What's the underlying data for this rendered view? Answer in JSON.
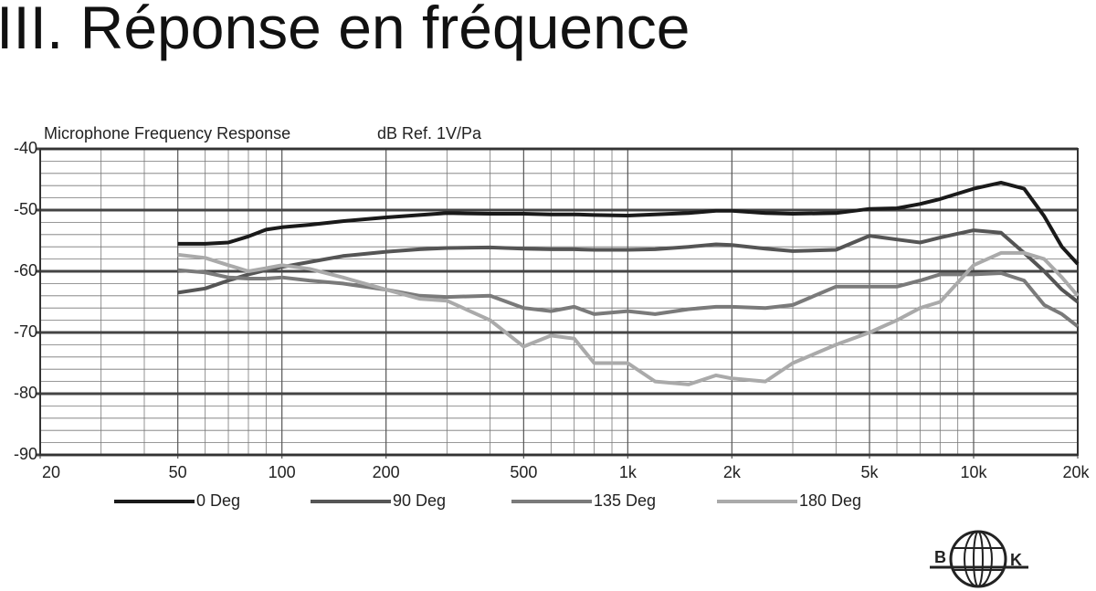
{
  "header": {
    "title": "III. Réponse en fréquence"
  },
  "chart_data": {
    "type": "line",
    "title": "Microphone Frequency Response",
    "y_label": "dB Ref. 1V/Pa",
    "x": [
      50,
      60,
      70,
      80,
      90,
      100,
      120,
      150,
      200,
      250,
      300,
      400,
      500,
      600,
      700,
      800,
      1000,
      1200,
      1500,
      1800,
      2000,
      2500,
      3000,
      4000,
      5000,
      6000,
      7000,
      8000,
      10000,
      12000,
      14000,
      16000,
      18000,
      20000
    ],
    "series": [
      {
        "name": "0 Deg",
        "color": "#1a1a1a",
        "values": [
          -55.5,
          -55.5,
          -55.3,
          -54.3,
          -53.2,
          -52.8,
          -52.4,
          -51.8,
          -51.2,
          -50.8,
          -50.5,
          -50.6,
          -50.6,
          -50.7,
          -50.7,
          -50.8,
          -50.9,
          -50.7,
          -50.5,
          -50.1,
          -50.1,
          -50.5,
          -50.6,
          -50.5,
          -49.8,
          -49.7,
          -49,
          -48.2,
          -46.5,
          -45.5,
          -46.5,
          -51,
          -56,
          -58.8
        ]
      },
      {
        "name": "90 Deg",
        "color": "#555555",
        "values": [
          -63.5,
          -62.8,
          -61.5,
          -60.5,
          -59.8,
          -59.3,
          -58.5,
          -57.5,
          -56.8,
          -56.4,
          -56.2,
          -56.1,
          -56.3,
          -56.4,
          -56.4,
          -56.5,
          -56.5,
          -56.4,
          -56,
          -55.6,
          -55.7,
          -56.3,
          -56.7,
          -56.5,
          -54.2,
          -54.8,
          -55.3,
          -54.5,
          -53.3,
          -53.7,
          -57,
          -60,
          -63,
          -65
        ]
      },
      {
        "name": "135 Deg",
        "color": "#7a7a7a",
        "values": [
          -59.8,
          -60.2,
          -61,
          -61.2,
          -61.2,
          -61,
          -61.5,
          -62,
          -63,
          -64,
          -64.2,
          -64,
          -66,
          -66.5,
          -65.8,
          -67,
          -66.5,
          -67,
          -66.2,
          -65.8,
          -65.8,
          -66,
          -65.5,
          -62.5,
          -62.5,
          -62.5,
          -61.5,
          -60.5,
          -60.5,
          -60.3,
          -61.5,
          -65.5,
          -67,
          -69
        ]
      },
      {
        "name": "180 Deg",
        "color": "#aaaaaa",
        "values": [
          -57.3,
          -57.8,
          -59,
          -60,
          -59.5,
          -59,
          -59.6,
          -61,
          -63,
          -64.5,
          -64.8,
          -68,
          -72.3,
          -70.5,
          -71,
          -75,
          -75,
          -78,
          -78.5,
          -77,
          -77.5,
          -78,
          -75,
          -72,
          -70,
          -68,
          -66,
          -65,
          -59,
          -57,
          -57,
          -58,
          -61,
          -64
        ]
      }
    ],
    "log_x": true,
    "xlim": [
      20,
      20000
    ],
    "xticks": [
      20,
      50,
      100,
      200,
      500,
      {
        "value": 1000,
        "label": "1k"
      },
      {
        "value": 2000,
        "label": "2k"
      },
      {
        "value": 5000,
        "label": "5k"
      },
      {
        "value": 10000,
        "label": "10k"
      },
      {
        "value": 20000,
        "label": "20k"
      }
    ],
    "xminorticks": [
      30,
      40,
      60,
      70,
      80,
      90,
      300,
      400,
      600,
      700,
      800,
      900,
      3000,
      4000,
      6000,
      7000,
      8000,
      9000
    ],
    "ylim": [
      -90,
      -40
    ],
    "yticks": [
      -40,
      -50,
      -60,
      -70,
      -80,
      -90
    ],
    "yminorticks": [
      -42,
      -44,
      -46,
      -48,
      -52,
      -54,
      -56,
      -58,
      -62,
      -64,
      -66,
      -68,
      -72,
      -74,
      -76,
      -78,
      -82,
      -84,
      -86,
      -88
    ],
    "grid": true
  },
  "logo": {
    "left": "B",
    "right": "K"
  }
}
